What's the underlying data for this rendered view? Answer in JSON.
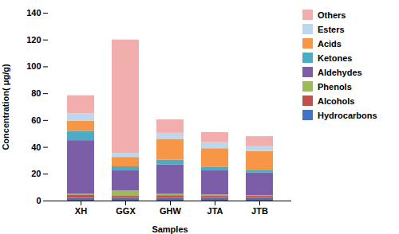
{
  "chart_data": {
    "type": "bar",
    "stacked": true,
    "xlabel": "Samples",
    "ylabel": "Concentration( μg/g)",
    "categories": [
      "XH",
      "GGX",
      "GHW",
      "JTA",
      "JTB"
    ],
    "series": [
      {
        "name": "Hydrocarbons",
        "color": "#4472C4",
        "values": [
          2.0,
          2.0,
          2.0,
          2.0,
          2.0
        ]
      },
      {
        "name": "Alcohols",
        "color": "#C0504D",
        "values": [
          2.5,
          1.5,
          2.0,
          1.5,
          1.5
        ]
      },
      {
        "name": "Phenols",
        "color": "#9BBB59",
        "values": [
          0.5,
          4.0,
          1.0,
          1.0,
          0.5
        ]
      },
      {
        "name": "Aldehydes",
        "color": "#7B5EA7",
        "values": [
          40.0,
          15.0,
          22.0,
          18.0,
          17.0
        ]
      },
      {
        "name": "Ketones",
        "color": "#4BACC6",
        "values": [
          7.0,
          3.0,
          3.5,
          2.5,
          2.0
        ]
      },
      {
        "name": "Acids",
        "color": "#F79646",
        "values": [
          7.5,
          7.0,
          15.5,
          14.0,
          14.0
        ]
      },
      {
        "name": "Esters",
        "color": "#BDD7EE",
        "values": [
          5.5,
          3.0,
          4.5,
          4.5,
          3.5
        ]
      },
      {
        "name": "Others",
        "color": "#F2AEAC",
        "values": [
          13.5,
          84.5,
          10.0,
          7.5,
          7.5
        ]
      }
    ],
    "ylim": [
      0,
      140
    ],
    "yticks": [
      0,
      20,
      40,
      60,
      80,
      100,
      120,
      140
    ],
    "grid": false,
    "legend": "right"
  }
}
